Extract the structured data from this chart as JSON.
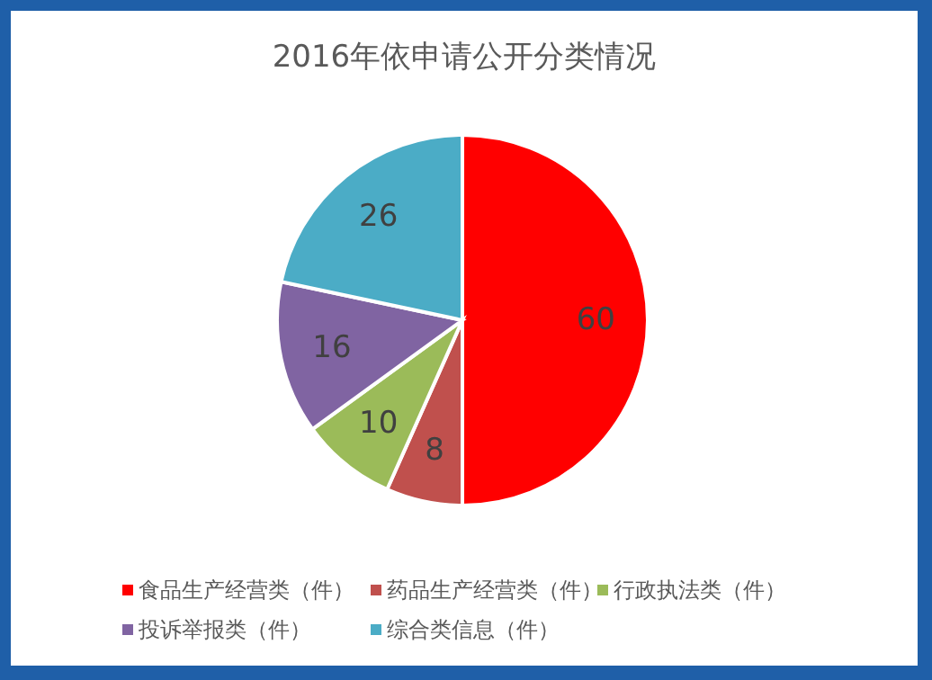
{
  "chart_data": {
    "type": "pie",
    "title": "2016年依申请公开分类情况",
    "categories": [
      "食品生产经营类（件）",
      "药品生产经营类（件）",
      "行政执法类（件）",
      "投诉举报类（件）",
      "综合类信息（件）"
    ],
    "values": [
      60,
      8,
      10,
      16,
      26
    ],
    "colors": [
      "#ff0000",
      "#c0504d",
      "#9bbb59",
      "#8064a2",
      "#4bacc6"
    ],
    "data_labels": true,
    "legend": "bottom"
  }
}
